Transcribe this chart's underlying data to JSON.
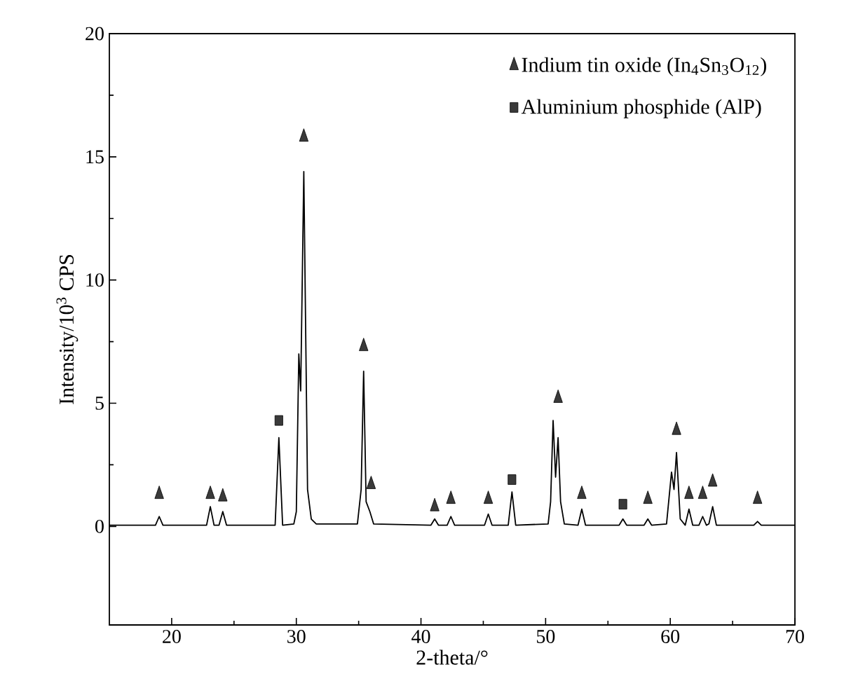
{
  "chart_data": {
    "type": "line",
    "xlabel": "2-theta/°",
    "ylabel": "Intensity/10$^{3}$ CPS",
    "xlim": [
      15,
      70
    ],
    "xticks": [
      20,
      30,
      40,
      50,
      60,
      70
    ],
    "ylim": [
      -4,
      20
    ],
    "yticks": [
      0,
      5,
      10,
      15,
      20
    ],
    "legend": "top right",
    "grid": false,
    "series": [
      {
        "color": "#000000",
        "marker": "none",
        "line_style": "solid",
        "x": [
          15,
          18.7,
          19.0,
          19.3,
          22.8,
          23.1,
          23.4,
          23.8,
          24.1,
          24.4,
          28.3,
          28.6,
          28.9,
          29.8,
          30.0,
          30.2,
          30.35,
          30.6,
          30.9,
          31.2,
          31.6,
          34.9,
          35.2,
          35.4,
          35.6,
          35.9,
          36.2,
          40.8,
          41.1,
          41.4,
          42.1,
          42.4,
          42.7,
          45.1,
          45.4,
          45.7,
          47.0,
          47.3,
          47.6,
          50.2,
          50.4,
          50.6,
          50.8,
          51.0,
          51.2,
          51.5,
          52.6,
          52.9,
          53.2,
          55.9,
          56.2,
          56.5,
          57.9,
          58.2,
          58.5,
          59.7,
          60.1,
          60.3,
          60.5,
          60.8,
          61.2,
          61.5,
          61.8,
          62.3,
          62.6,
          62.9,
          63.1,
          63.4,
          63.7,
          66.7,
          67.0,
          67.3,
          70
        ],
        "values": [
          0.05,
          0.05,
          0.4,
          0.05,
          0.05,
          0.8,
          0.05,
          0.05,
          0.6,
          0.05,
          0.05,
          3.6,
          0.05,
          0.1,
          0.6,
          7.0,
          5.5,
          14.4,
          1.5,
          0.3,
          0.1,
          0.1,
          1.5,
          6.3,
          1.0,
          0.6,
          0.1,
          0.05,
          0.3,
          0.05,
          0.05,
          0.4,
          0.05,
          0.05,
          0.5,
          0.05,
          0.05,
          1.4,
          0.05,
          0.1,
          1.0,
          4.3,
          2.0,
          3.6,
          1.0,
          0.1,
          0.05,
          0.7,
          0.05,
          0.05,
          0.3,
          0.05,
          0.05,
          0.3,
          0.05,
          0.1,
          2.2,
          1.5,
          3.0,
          0.3,
          0.05,
          0.7,
          0.05,
          0.05,
          0.4,
          0.05,
          0.1,
          0.8,
          0.05,
          0.05,
          0.2,
          0.05,
          0.05
        ]
      },
      {
        "type": "scatter",
        "name": "Indium tin oxide (In$_{4}$Sn$_{3}$O$_{12}$)",
        "color": "#3a3a3a",
        "marker": "triangle",
        "x": [
          19.0,
          23.1,
          24.1,
          30.6,
          35.4,
          36.0,
          41.1,
          42.4,
          45.4,
          51.0,
          52.9,
          58.2,
          60.5,
          61.5,
          62.6,
          63.4,
          67.0
        ],
        "values": [
          1.3,
          1.3,
          1.2,
          15.8,
          7.3,
          1.7,
          0.8,
          1.1,
          1.1,
          5.2,
          1.3,
          1.1,
          3.9,
          1.3,
          1.3,
          1.8,
          1.1
        ]
      },
      {
        "type": "scatter",
        "name": "Aluminium phosphide (AlP)",
        "color": "#3a3a3a",
        "marker": "square",
        "x": [
          28.6,
          47.3,
          56.2
        ],
        "values": [
          4.3,
          1.9,
          0.9
        ]
      }
    ]
  }
}
